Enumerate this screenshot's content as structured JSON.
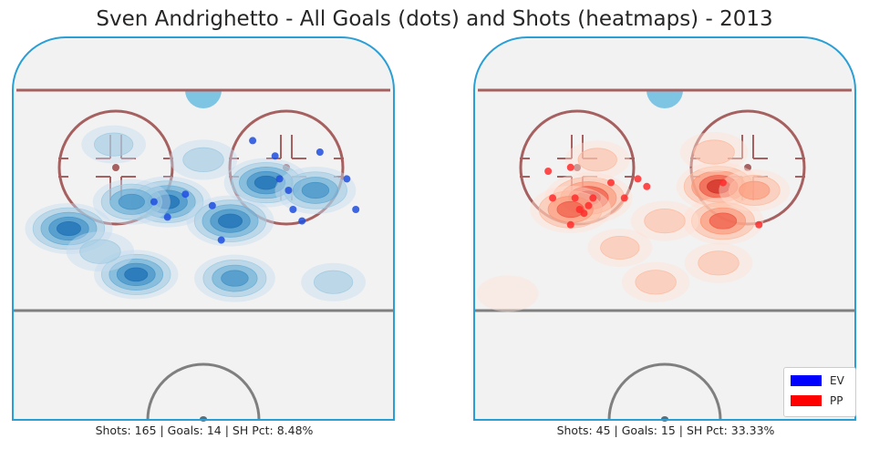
{
  "title": "Sven Andrighetto - All Goals (dots) and Shots (heatmaps) - 2013",
  "panels": [
    {
      "id": "ev",
      "stats": "Shots: 165 | Goals: 14 | SH Pct: 8.48%"
    },
    {
      "id": "pp",
      "stats": "Shots: 45 | Goals: 15 | SH Pct: 33.33%"
    }
  ],
  "legend": [
    {
      "label": "EV",
      "color": "#0000ff"
    },
    {
      "label": "PP",
      "color": "#ff0000"
    }
  ],
  "colors": {
    "rink_fill": "#f2f2f2",
    "boards": "#2a9fd6",
    "goal_line": "#a66060",
    "faceoff": "#a66060",
    "blue_line": "#7f7f7f",
    "crease": "#7ec4e3",
    "ev_goal": "#1f4de0",
    "pp_goal": "#ff2b2b"
  },
  "chart_data": {
    "type": "scatter",
    "x_range": [
      -42.5,
      42.5
    ],
    "y_range": [
      0,
      100
    ],
    "units": "feet (offensive half-rink, y = distance from center line)",
    "series": [
      {
        "name": "EV",
        "goals": [
          {
            "x": 11,
            "y": 73
          },
          {
            "x": 16,
            "y": 69
          },
          {
            "x": 17,
            "y": 63
          },
          {
            "x": 19,
            "y": 60
          },
          {
            "x": 20,
            "y": 55
          },
          {
            "x": 22,
            "y": 52
          },
          {
            "x": 26,
            "y": 70
          },
          {
            "x": 32,
            "y": 63
          },
          {
            "x": 34,
            "y": 55
          },
          {
            "x": -11,
            "y": 57
          },
          {
            "x": -8,
            "y": 53
          },
          {
            "x": -4,
            "y": 59
          },
          {
            "x": 2,
            "y": 56
          },
          {
            "x": 4,
            "y": 47
          }
        ],
        "shot_density": [
          {
            "x": -30,
            "y": 50,
            "w": 1.0
          },
          {
            "x": -8,
            "y": 57,
            "w": 1.0
          },
          {
            "x": 14,
            "y": 62,
            "w": 0.9
          },
          {
            "x": 6,
            "y": 52,
            "w": 1.0
          },
          {
            "x": 25,
            "y": 60,
            "w": 0.8
          },
          {
            "x": -16,
            "y": 57,
            "w": 0.7
          },
          {
            "x": -15,
            "y": 38,
            "w": 0.9
          },
          {
            "x": 7,
            "y": 37,
            "w": 0.8
          },
          {
            "x": -23,
            "y": 44,
            "w": 0.4
          },
          {
            "x": 29,
            "y": 36,
            "w": 0.3
          },
          {
            "x": 0,
            "y": 68,
            "w": 0.4
          },
          {
            "x": -20,
            "y": 72,
            "w": 0.3
          }
        ]
      },
      {
        "name": "PP",
        "goals": [
          {
            "x": -25,
            "y": 58
          },
          {
            "x": -20,
            "y": 58
          },
          {
            "x": -19,
            "y": 55
          },
          {
            "x": -18,
            "y": 54
          },
          {
            "x": -17,
            "y": 56
          },
          {
            "x": -16,
            "y": 58
          },
          {
            "x": -12,
            "y": 62
          },
          {
            "x": -9,
            "y": 58
          },
          {
            "x": -6,
            "y": 63
          },
          {
            "x": -4,
            "y": 61
          },
          {
            "x": -21,
            "y": 66
          },
          {
            "x": -26,
            "y": 65
          },
          {
            "x": -21,
            "y": 51
          },
          {
            "x": 13,
            "y": 62
          },
          {
            "x": 21,
            "y": 51
          }
        ],
        "shot_density": [
          {
            "x": -17,
            "y": 58,
            "w": 1.0
          },
          {
            "x": -21,
            "y": 55,
            "w": 0.8
          },
          {
            "x": 12,
            "y": 61,
            "w": 0.9
          },
          {
            "x": 13,
            "y": 52,
            "w": 0.8
          },
          {
            "x": 0,
            "y": 52,
            "w": 0.4
          },
          {
            "x": -10,
            "y": 45,
            "w": 0.3
          },
          {
            "x": -2,
            "y": 36,
            "w": 0.4
          },
          {
            "x": 12,
            "y": 41,
            "w": 0.4
          },
          {
            "x": 20,
            "y": 60,
            "w": 0.5
          },
          {
            "x": -15,
            "y": 68,
            "w": 0.3
          },
          {
            "x": 11,
            "y": 70,
            "w": 0.4
          },
          {
            "x": -35,
            "y": 33,
            "w": 0.2
          }
        ]
      }
    ]
  }
}
